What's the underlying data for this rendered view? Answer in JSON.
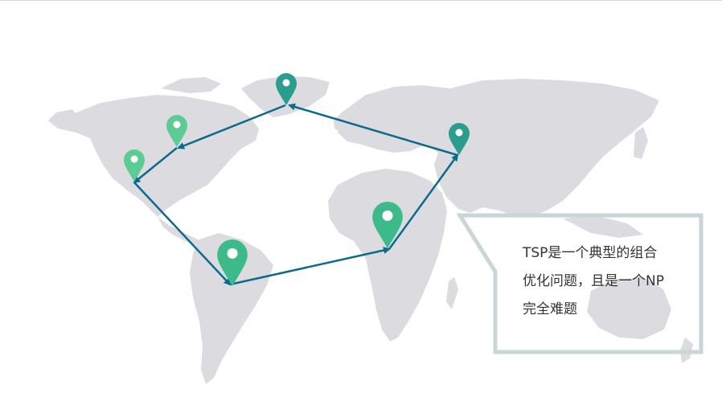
{
  "callout": {
    "lines": [
      "TSP是一个典型的组合",
      "优化问题，且是一个NP",
      "完全难题"
    ]
  },
  "colors": {
    "land": "#dcdbe0",
    "route": "#0e6a8c",
    "pin_teal": "#2a9d8f",
    "pin_green": "#3dba8a",
    "pin_light_green": "#5ccc92",
    "callout_border": "#c9d6d5"
  },
  "pins": [
    {
      "name": "greenland",
      "color": "teal"
    },
    {
      "name": "canada",
      "color": "light-green"
    },
    {
      "name": "usa-west",
      "color": "light-green"
    },
    {
      "name": "brazil",
      "color": "green"
    },
    {
      "name": "central-africa",
      "color": "green"
    },
    {
      "name": "russia",
      "color": "teal"
    }
  ]
}
